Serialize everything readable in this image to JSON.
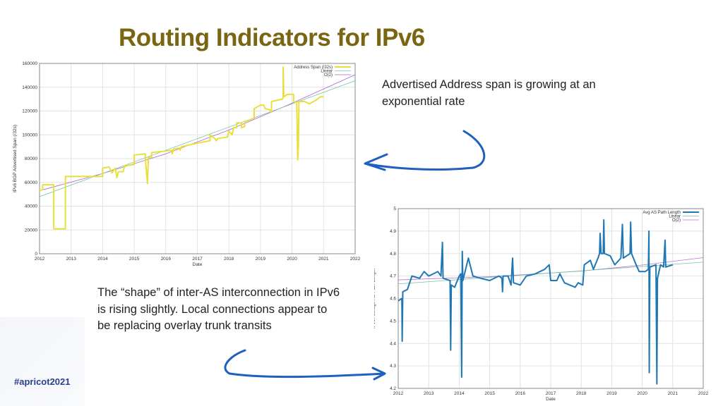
{
  "slide": {
    "title": "Routing Indicators for IPv6",
    "note_top": "Advertised Address span is  growing at an exponential rate",
    "note_bottom": "The “shape” of inter-AS interconnection in IPv6 is rising slightly. Local connections appear to be replacing overlay trunk transits",
    "hashtag": "#apricot2021",
    "arrow_color": "#1f5fbf"
  },
  "chart_data": [
    {
      "type": "line",
      "xlabel": "Date",
      "ylabel": "IPv6 BGP Advertised Span (/32s)",
      "xlim": [
        2012,
        2022
      ],
      "ylim": [
        0,
        160000
      ],
      "grid": true,
      "legend": "top-right",
      "xticks": [
        "2012",
        "2013",
        "2014",
        "2015",
        "2016",
        "2017",
        "2018",
        "2019",
        "2020",
        "2021",
        "2022"
      ],
      "yticks": [
        "0",
        "20000",
        "40000",
        "60000",
        "80000",
        "100000",
        "120000",
        "140000",
        "160000"
      ],
      "series": [
        {
          "name": "Address Span (/32s)",
          "color": "#e8e03a",
          "points": [
            [
              2012.0,
              53000
            ],
            [
              2012.1,
              54000
            ],
            [
              2012.1,
              58000
            ],
            [
              2012.45,
              58000
            ],
            [
              2012.45,
              21000
            ],
            [
              2012.82,
              21000
            ],
            [
              2012.82,
              65000
            ],
            [
              2014.0,
              65000
            ],
            [
              2014.0,
              72000
            ],
            [
              2014.2,
              73000
            ],
            [
              2014.3,
              68000
            ],
            [
              2014.4,
              72000
            ],
            [
              2014.45,
              64000
            ],
            [
              2014.5,
              69000
            ],
            [
              2014.65,
              69000
            ],
            [
              2014.7,
              74000
            ],
            [
              2015.0,
              75000
            ],
            [
              2015.0,
              83000
            ],
            [
              2015.35,
              84000
            ],
            [
              2015.35,
              80000
            ],
            [
              2015.42,
              59000
            ],
            [
              2015.45,
              81000
            ],
            [
              2015.55,
              81000
            ],
            [
              2015.55,
              85000
            ],
            [
              2016.2,
              87000
            ],
            [
              2016.2,
              84000
            ],
            [
              2016.25,
              88000
            ],
            [
              2016.45,
              89000
            ],
            [
              2016.45,
              87000
            ],
            [
              2016.5,
              90000
            ],
            [
              2017.0,
              93000
            ],
            [
              2017.4,
              95000
            ],
            [
              2017.4,
              100000
            ],
            [
              2017.55,
              97000
            ],
            [
              2017.6,
              95000
            ],
            [
              2017.65,
              97000
            ],
            [
              2017.95,
              98000
            ],
            [
              2018.0,
              103000
            ],
            [
              2018.1,
              100000
            ],
            [
              2018.15,
              106000
            ],
            [
              2018.25,
              106000
            ],
            [
              2018.25,
              110000
            ],
            [
              2018.4,
              110000
            ],
            [
              2018.4,
              106000
            ],
            [
              2018.5,
              107000
            ],
            [
              2018.5,
              111000
            ],
            [
              2018.8,
              114000
            ],
            [
              2018.8,
              122000
            ],
            [
              2019.0,
              125000
            ],
            [
              2019.1,
              125000
            ],
            [
              2019.15,
              122000
            ],
            [
              2019.3,
              121000
            ],
            [
              2019.35,
              119000
            ],
            [
              2019.35,
              128000
            ],
            [
              2019.7,
              130000
            ],
            [
              2019.72,
              132000
            ],
            [
              2019.72,
              157000
            ],
            [
              2019.74,
              132000
            ],
            [
              2019.85,
              134000
            ],
            [
              2020.05,
              134000
            ],
            [
              2020.05,
              128000
            ],
            [
              2020.15,
              127000
            ],
            [
              2020.18,
              79000
            ],
            [
              2020.2,
              90000
            ],
            [
              2020.22,
              128000
            ],
            [
              2020.4,
              128000
            ],
            [
              2020.55,
              126000
            ],
            [
              2020.75,
              129000
            ],
            [
              2020.9,
              132000
            ],
            [
              2021.0,
              132000
            ]
          ]
        },
        {
          "name": "Linear",
          "color": "#6cc4a4",
          "points": [
            [
              2012,
              48000
            ],
            [
              2022,
              145500
            ]
          ]
        },
        {
          "name": "O(2)",
          "color": "#b060d0",
          "points": [
            [
              2012,
              53000
            ],
            [
              2014,
              67500
            ],
            [
              2016,
              84000
            ],
            [
              2018,
              104000
            ],
            [
              2020,
              126500
            ],
            [
              2022,
              150500
            ]
          ]
        }
      ]
    },
    {
      "type": "line",
      "xlabel": "Date",
      "ylabel": "IPv6 Average AS Path Length",
      "xlim": [
        2012,
        2022
      ],
      "ylim": [
        4.2,
        5
      ],
      "grid": true,
      "legend": "top-right",
      "xticks": [
        "2012",
        "2013",
        "2014",
        "2015",
        "2016",
        "2017",
        "2018",
        "2019",
        "2020",
        "2021",
        "2022"
      ],
      "yticks": [
        "4.2",
        "4.3",
        "4.4",
        "4.5",
        "4.6",
        "4.7",
        "4.8",
        "4.9",
        "5"
      ],
      "series": [
        {
          "name": "Avg AS Path Length",
          "color": "#1f78b4",
          "points": [
            [
              2012.0,
              4.59
            ],
            [
              2012.12,
              4.6
            ],
            [
              2012.13,
              4.41
            ],
            [
              2012.15,
              4.63
            ],
            [
              2012.3,
              4.64
            ],
            [
              2012.45,
              4.7
            ],
            [
              2012.7,
              4.69
            ],
            [
              2012.85,
              4.72
            ],
            [
              2013.0,
              4.7
            ],
            [
              2013.3,
              4.72
            ],
            [
              2013.4,
              4.7
            ],
            [
              2013.45,
              4.85
            ],
            [
              2013.47,
              4.69
            ],
            [
              2013.7,
              4.68
            ],
            [
              2013.72,
              4.37
            ],
            [
              2013.74,
              4.66
            ],
            [
              2013.85,
              4.65
            ],
            [
              2014.0,
              4.7
            ],
            [
              2014.05,
              4.71
            ],
            [
              2014.08,
              4.25
            ],
            [
              2014.1,
              4.81
            ],
            [
              2014.12,
              4.68
            ],
            [
              2014.3,
              4.78
            ],
            [
              2014.45,
              4.7
            ],
            [
              2014.7,
              4.69
            ],
            [
              2015.0,
              4.68
            ],
            [
              2015.3,
              4.7
            ],
            [
              2015.4,
              4.69
            ],
            [
              2015.42,
              4.63
            ],
            [
              2015.44,
              4.7
            ],
            [
              2015.6,
              4.7
            ],
            [
              2015.7,
              4.66
            ],
            [
              2015.75,
              4.78
            ],
            [
              2015.78,
              4.67
            ],
            [
              2016.0,
              4.66
            ],
            [
              2016.2,
              4.7
            ],
            [
              2016.5,
              4.71
            ],
            [
              2016.8,
              4.73
            ],
            [
              2016.95,
              4.75
            ],
            [
              2017.0,
              4.68
            ],
            [
              2017.2,
              4.68
            ],
            [
              2017.3,
              4.71
            ],
            [
              2017.45,
              4.67
            ],
            [
              2017.8,
              4.65
            ],
            [
              2017.9,
              4.67
            ],
            [
              2018.05,
              4.66
            ],
            [
              2018.1,
              4.75
            ],
            [
              2018.3,
              4.77
            ],
            [
              2018.4,
              4.73
            ],
            [
              2018.55,
              4.78
            ],
            [
              2018.6,
              4.8
            ],
            [
              2018.62,
              4.89
            ],
            [
              2018.65,
              4.8
            ],
            [
              2018.72,
              4.8
            ],
            [
              2018.74,
              4.95
            ],
            [
              2018.76,
              4.8
            ],
            [
              2018.95,
              4.79
            ],
            [
              2019.1,
              4.75
            ],
            [
              2019.3,
              4.78
            ],
            [
              2019.35,
              4.93
            ],
            [
              2019.38,
              4.78
            ],
            [
              2019.6,
              4.8
            ],
            [
              2019.62,
              4.94
            ],
            [
              2019.65,
              4.8
            ],
            [
              2019.8,
              4.75
            ],
            [
              2019.9,
              4.72
            ],
            [
              2020.1,
              4.72
            ],
            [
              2020.2,
              4.73
            ],
            [
              2020.22,
              4.9
            ],
            [
              2020.23,
              4.27
            ],
            [
              2020.25,
              4.74
            ],
            [
              2020.45,
              4.75
            ],
            [
              2020.48,
              4.22
            ],
            [
              2020.5,
              4.69
            ],
            [
              2020.6,
              4.75
            ],
            [
              2020.7,
              4.74
            ],
            [
              2020.75,
              4.86
            ],
            [
              2020.77,
              4.74
            ],
            [
              2021.0,
              4.75
            ]
          ]
        },
        {
          "name": "Linear",
          "color": "#6cc4a4",
          "points": [
            [
              2012,
              4.665
            ],
            [
              2022,
              4.762
            ]
          ]
        },
        {
          "name": "O(2)",
          "color": "#c070d8",
          "points": [
            [
              2012,
              4.683
            ],
            [
              2015,
              4.697
            ],
            [
              2018,
              4.722
            ],
            [
              2020,
              4.749
            ],
            [
              2022,
              4.782
            ]
          ]
        }
      ]
    }
  ]
}
